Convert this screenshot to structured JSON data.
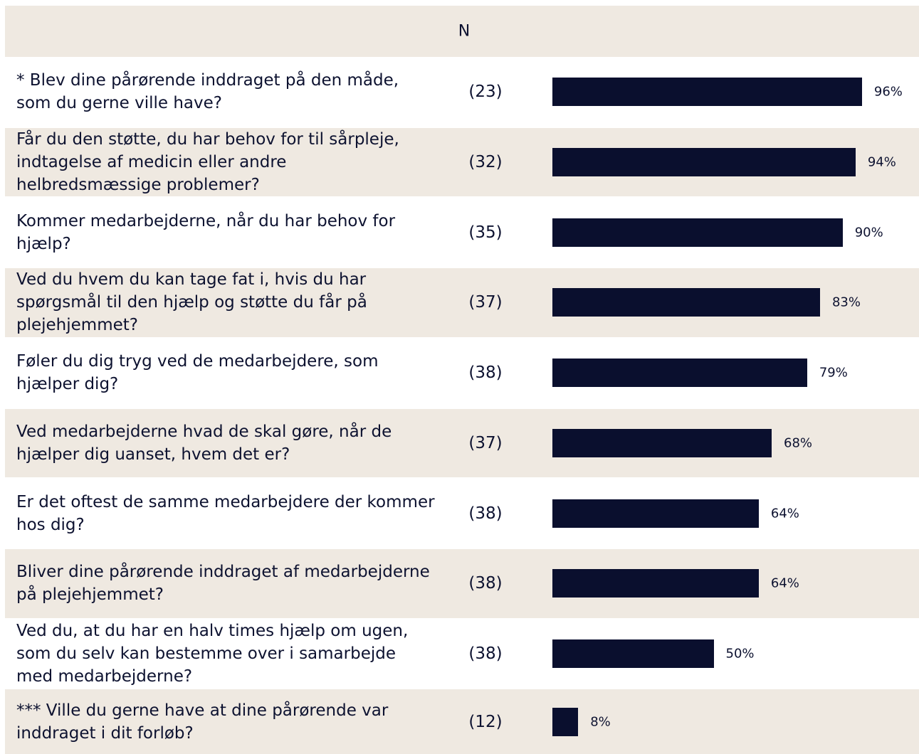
{
  "chart_data": {
    "type": "bar",
    "orientation": "horizontal",
    "n_header": "N",
    "categories": [
      "* Blev dine pårørende inddraget på den måde, som du gerne ville have?",
      "Får du den støtte, du har behov for til sårpleje, indtagelse af medicin eller andre helbredsmæssige problemer?",
      "Kommer medarbejderne, når du har behov for hjælp?",
      "Ved du hvem du kan tage fat i, hvis du har spørgsmål til den hjælp og støtte du får på plejehjemmet?",
      "Føler du dig tryg ved de medarbejdere, som hjælper dig?",
      "Ved medarbejderne hvad de skal gøre, når de hjælper dig uanset, hvem det er?",
      "Er det oftest de samme medarbejdere der kommer hos dig?",
      "Bliver dine pårørende inddraget af medarbejderne på plejehjemmet?",
      "Ved du, at du har en halv times hjælp om ugen, som du selv kan bestemme over i samarbejde med medarbejderne?",
      "*** Ville du gerne have at dine pårørende var inddraget i dit forløb?"
    ],
    "n": [
      "(23)",
      "(32)",
      "(35)",
      "(37)",
      "(38)",
      "(37)",
      "(38)",
      "(38)",
      "(38)",
      "(12)"
    ],
    "values": [
      96,
      94,
      90,
      83,
      79,
      68,
      64,
      64,
      50,
      8
    ],
    "value_labels": [
      "96%",
      "94%",
      "90%",
      "83%",
      "79%",
      "68%",
      "64%",
      "64%",
      "50%",
      "8%"
    ],
    "color": "#0a0f2e",
    "row_color": "#efe9e1",
    "xlim": [
      0,
      100
    ]
  }
}
